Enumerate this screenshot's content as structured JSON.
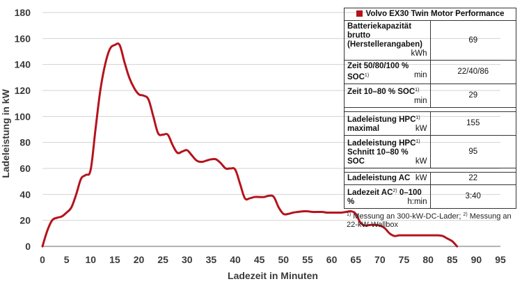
{
  "chart_data": {
    "type": "line",
    "xlabel": "Ladezeit in Minuten",
    "ylabel": "Ladeleistung in kW",
    "xlim": [
      0,
      95
    ],
    "ylim": [
      0,
      180
    ],
    "x_ticks": [
      "0",
      "5",
      "10",
      "15",
      "20",
      "25",
      "30",
      "35",
      "40",
      "45",
      "50",
      "55",
      "60",
      "65",
      "70",
      "75",
      "80",
      "85",
      "90",
      "95"
    ],
    "y_ticks": [
      "0",
      "20",
      "40",
      "60",
      "80",
      "100",
      "120",
      "140",
      "160",
      "180"
    ],
    "grid": "horizontal",
    "line_color": "#b5131c",
    "series": [
      {
        "name": "Volvo EX30 Twin Motor Performance",
        "x": [
          0,
          1,
          2,
          3,
          4,
          5,
          6,
          7,
          8,
          9,
          10,
          11,
          12,
          13,
          14,
          15,
          16,
          17,
          18,
          19,
          20,
          21,
          22,
          23,
          24,
          25,
          26,
          27,
          28,
          29,
          30,
          31,
          32,
          33,
          34,
          35,
          36,
          37,
          38,
          39,
          40,
          41,
          42,
          43,
          44,
          45,
          46,
          47,
          48,
          49,
          50,
          51,
          52,
          53,
          54,
          55,
          56,
          57,
          58,
          59,
          60,
          61,
          62,
          63,
          64,
          65,
          66,
          67,
          68,
          69,
          70,
          71,
          72,
          73,
          74,
          75,
          76,
          77,
          78,
          79,
          80,
          81,
          82,
          83,
          84,
          85,
          86
        ],
        "y": [
          0,
          12,
          20,
          22,
          23,
          26,
          30,
          40,
          52,
          55,
          59,
          90,
          120,
          140,
          152,
          155,
          155,
          142,
          130,
          122,
          117,
          116,
          113,
          100,
          87,
          86,
          86,
          78,
          72,
          73,
          74,
          70,
          66,
          65,
          66,
          67,
          67,
          64,
          60,
          60,
          59,
          48,
          37,
          37,
          38,
          38,
          38,
          39,
          38,
          30,
          25,
          25,
          26,
          26.5,
          27,
          27,
          26.5,
          26.5,
          26.5,
          26,
          26,
          26,
          26,
          26.5,
          27,
          25,
          18,
          16,
          16.5,
          16.5,
          16,
          14,
          10,
          8,
          8.5,
          8.5,
          8.5,
          8.5,
          8.5,
          8.5,
          8.5,
          8.5,
          8.5,
          8,
          6,
          4,
          0
        ]
      }
    ]
  },
  "spec_table": {
    "header": "Volvo EX30 Twin Motor Performance",
    "header_color": "#b5131c",
    "rows": [
      {
        "label_line1": "Batteriekapazität brutto",
        "label_line2": "(Herstellerangaben)",
        "unit": "kWh",
        "value": "69"
      },
      {
        "label_line1": "Zeit 50/80/100 % SOC",
        "label_sup": "1)",
        "unit": "min",
        "value": "22/40/86"
      },
      {
        "label_line1": "Zeit 10–80 % SOC",
        "label_sup": "1)",
        "unit": "min",
        "value": "29"
      },
      {
        "label_line1": "Ladeleistung HPC",
        "label_sup": "1)",
        "label_line2": "maximal",
        "unit": "kW",
        "value": "155"
      },
      {
        "label_line1": "Ladeleistung HPC",
        "label_sup": "1)",
        "label_line2": "Schnitt 10–80 % SOC",
        "unit": "kW",
        "value": "95"
      },
      {
        "label_line1": "Ladeleistung AC",
        "unit": "kW",
        "value": "22"
      },
      {
        "label_line1": "Ladezeit AC",
        "label_sup": "2)",
        "label_after": " 0–100 %",
        "unit": "h:min",
        "value": "3:40"
      }
    ],
    "footnote_1_mark": "1)",
    "footnote_1": " Messung an 300-kW-DC-Lader; ",
    "footnote_2_mark": "2)",
    "footnote_2": " Messung an 22-kW-Wallbox"
  }
}
